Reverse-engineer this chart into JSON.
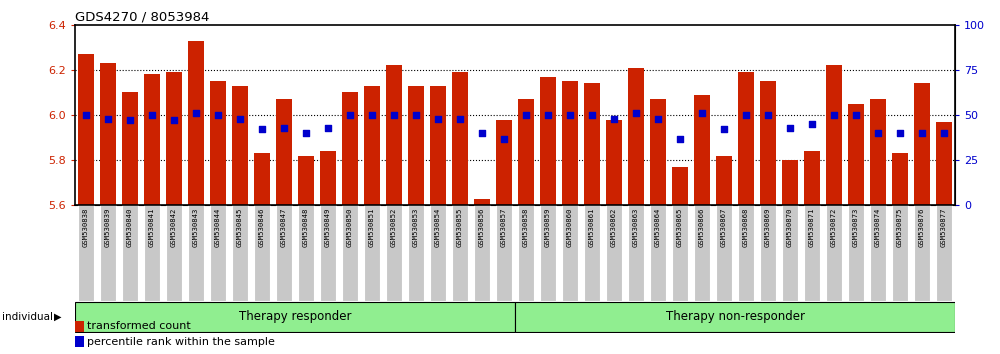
{
  "title": "GDS4270 / 8053984",
  "samples": [
    "GSM530838",
    "GSM530839",
    "GSM530840",
    "GSM530841",
    "GSM530842",
    "GSM530843",
    "GSM530844",
    "GSM530845",
    "GSM530846",
    "GSM530847",
    "GSM530848",
    "GSM530849",
    "GSM530850",
    "GSM530851",
    "GSM530852",
    "GSM530853",
    "GSM530854",
    "GSM530855",
    "GSM530856",
    "GSM530857",
    "GSM530858",
    "GSM530859",
    "GSM530860",
    "GSM530861",
    "GSM530862",
    "GSM530863",
    "GSM530864",
    "GSM530865",
    "GSM530866",
    "GSM530867",
    "GSM530868",
    "GSM530869",
    "GSM530870",
    "GSM530871",
    "GSM530872",
    "GSM530873",
    "GSM530874",
    "GSM530875",
    "GSM530876",
    "GSM530877"
  ],
  "bar_values": [
    6.27,
    6.23,
    6.1,
    6.18,
    6.19,
    6.33,
    6.15,
    6.13,
    5.83,
    6.07,
    5.82,
    5.84,
    6.1,
    6.13,
    6.22,
    6.13,
    6.13,
    6.19,
    5.63,
    5.98,
    6.07,
    6.17,
    6.15,
    6.14,
    5.98,
    6.21,
    6.07,
    5.77,
    6.09,
    5.82,
    6.19,
    6.15,
    5.8,
    5.84,
    6.22,
    6.05,
    6.07,
    5.83,
    6.14,
    5.97
  ],
  "percentile_values": [
    50,
    48,
    47,
    50,
    47,
    51,
    50,
    48,
    42,
    43,
    40,
    43,
    50,
    50,
    50,
    50,
    48,
    48,
    40,
    37,
    50,
    50,
    50,
    50,
    48,
    51,
    48,
    37,
    51,
    42,
    50,
    50,
    43,
    45,
    50,
    50,
    40,
    40,
    40,
    40
  ],
  "group1_label": "Therapy responder",
  "group2_label": "Therapy non-responder",
  "group1_count": 20,
  "ylim_left": [
    5.6,
    6.4
  ],
  "ylim_right": [
    0,
    100
  ],
  "yticks_left": [
    5.6,
    5.8,
    6.0,
    6.2,
    6.4
  ],
  "yticks_right": [
    0,
    25,
    50,
    75,
    100
  ],
  "bar_color": "#cc2200",
  "dot_color": "#0000cc",
  "group_bg_color": "#90ee90",
  "tick_label_bg": "#c8c8c8",
  "bar_color_legend": "#cc2200",
  "dot_color_legend": "#0000cc",
  "left_axis_color": "#cc2200",
  "right_axis_color": "#0000cc",
  "grid_ticks": [
    5.8,
    6.0,
    6.2
  ],
  "legend_bar_label": "transformed count",
  "legend_dot_label": "percentile rank within the sample",
  "individual_label": "individual"
}
